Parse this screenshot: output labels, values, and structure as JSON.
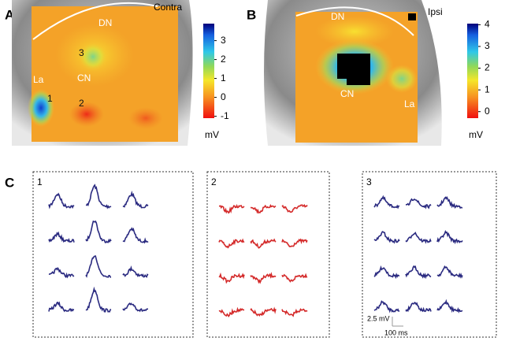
{
  "panels": {
    "A": {
      "label": "A",
      "side": "Contra",
      "map_labels": {
        "dn": "DN",
        "cn": "CN",
        "la": "La",
        "p1": "1",
        "p2": "2",
        "p3": "3"
      },
      "colorbar": {
        "lim": [
          -1.1,
          3.9
        ],
        "ticks": [
          3,
          2,
          1,
          0,
          -1
        ],
        "unit": "mV"
      }
    },
    "B": {
      "label": "B",
      "side": "Ipsi",
      "map_labels": {
        "dn": "DN",
        "cn": "CN",
        "la": "La"
      },
      "colorbar": {
        "lim": [
          -0.3,
          4.05
        ],
        "ticks": [
          4,
          3,
          2,
          1,
          0
        ],
        "unit": "mV"
      }
    },
    "C": {
      "label": "C",
      "boxes": [
        "1",
        "2",
        "3"
      ],
      "scale_bar": {
        "voltage": "2.5 mV",
        "time": "100 ms"
      }
    }
  }
}
